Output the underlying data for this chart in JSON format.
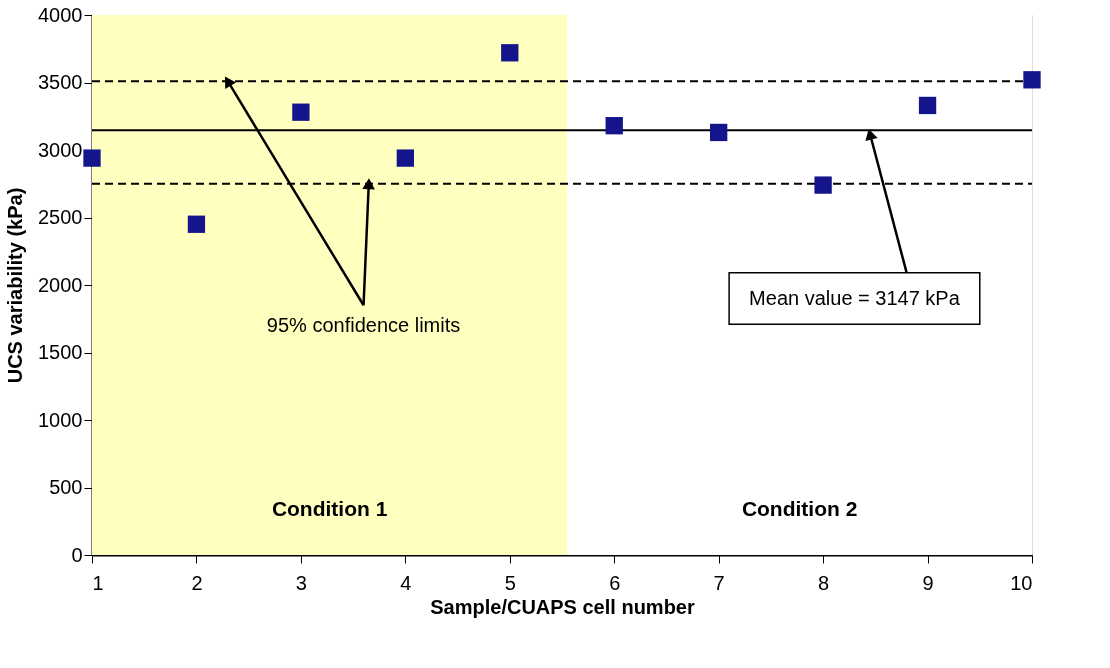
{
  "chart_data": {
    "type": "scatter",
    "xlabel": "Sample/CUAPS cell number",
    "ylabel": "UCS variability (kPa)",
    "x": [
      1,
      2,
      3,
      4,
      5,
      6,
      7,
      8,
      9,
      10
    ],
    "series": [
      {
        "color": "#14148c",
        "values": [
          2940,
          2450,
          3280,
          2940,
          3720,
          3180,
          3130,
          2740,
          3330,
          3520
        ]
      }
    ],
    "xlim": [
      1,
      10
    ],
    "xticks": [
      1,
      2,
      3,
      4,
      5,
      6,
      7,
      8,
      9,
      10
    ],
    "ylim": [
      0,
      4000
    ],
    "yticks": [
      0,
      500,
      1000,
      1500,
      2000,
      2500,
      3000,
      3500,
      4000
    ],
    "ref_lines": [
      {
        "axis": "y",
        "value": 3147,
        "label": "Mean value = 3147 kPa",
        "color": "#000000",
        "line_style": "solid"
      },
      {
        "axis": "y",
        "value": 3510,
        "color": "#000000",
        "line_style": "dashed"
      },
      {
        "axis": "y",
        "value": 2750,
        "color": "#000000",
        "line_style": "dashed"
      }
    ],
    "bands": [
      {
        "axis": "x",
        "from": 1,
        "to": 5.55,
        "label": "Condition 1",
        "color": "#ffffc0"
      },
      {
        "axis": "x",
        "from": 5.55,
        "to": 10,
        "label": "Condition 2",
        "color": "#ffffff"
      }
    ],
    "annotations": [
      "95% confidence limits"
    ],
    "marker": "square",
    "grid": false
  }
}
